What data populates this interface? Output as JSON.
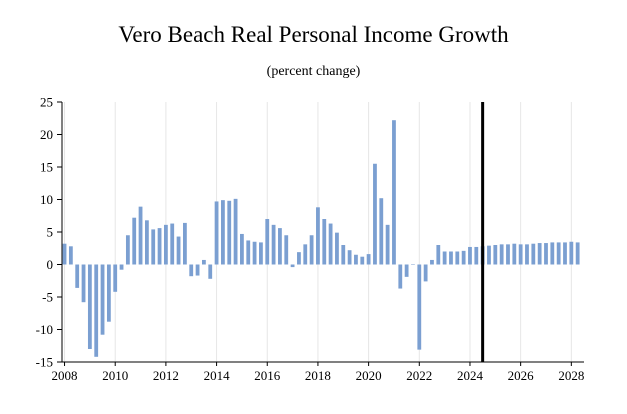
{
  "chart_data": {
    "type": "bar",
    "title": "Vero Beach Real Personal Income Growth",
    "subtitle": "(percent change)",
    "xlabel": "",
    "ylabel": "",
    "ylim": [
      -15,
      25
    ],
    "yticks": [
      -15,
      -10,
      -5,
      0,
      5,
      10,
      15,
      20,
      25
    ],
    "xlim": [
      2007.9,
      2028.5
    ],
    "xticks": [
      2008,
      2010,
      2012,
      2014,
      2016,
      2018,
      2020,
      2022,
      2024,
      2026,
      2028
    ],
    "grid": "vertical-light",
    "bar_color": "#7b9fd1",
    "reference_line": {
      "x": 2024.5,
      "color": "#000000"
    },
    "x": [
      2008,
      2008.25,
      2008.5,
      2008.75,
      2009,
      2009.25,
      2009.5,
      2009.75,
      2010,
      2010.25,
      2010.5,
      2010.75,
      2011,
      2011.25,
      2011.5,
      2011.75,
      2012,
      2012.25,
      2012.5,
      2012.75,
      2013,
      2013.25,
      2013.5,
      2013.75,
      2014,
      2014.25,
      2014.5,
      2014.75,
      2015,
      2015.25,
      2015.5,
      2015.75,
      2016,
      2016.25,
      2016.5,
      2016.75,
      2017,
      2017.25,
      2017.5,
      2017.75,
      2018,
      2018.25,
      2018.5,
      2018.75,
      2019,
      2019.25,
      2019.5,
      2019.75,
      2020,
      2020.25,
      2020.5,
      2020.75,
      2021,
      2021.25,
      2021.5,
      2021.75,
      2022,
      2022.25,
      2022.5,
      2022.75,
      2023,
      2023.25,
      2023.5,
      2023.75,
      2024,
      2024.25,
      2024.5,
      2024.75,
      2025,
      2025.25,
      2025.5,
      2025.75,
      2026,
      2026.25,
      2026.5,
      2026.75,
      2027,
      2027.25,
      2027.5,
      2027.75,
      2028,
      2028.25
    ],
    "values": [
      3.2,
      2.8,
      -3.6,
      -5.8,
      -13.0,
      -14.2,
      -10.8,
      -8.8,
      -4.2,
      -0.8,
      4.5,
      7.2,
      8.9,
      6.8,
      5.4,
      5.6,
      6.1,
      6.3,
      4.3,
      6.4,
      -1.8,
      -1.7,
      0.7,
      -2.2,
      9.7,
      9.9,
      9.8,
      10.1,
      4.7,
      3.7,
      3.5,
      3.4,
      7.0,
      6.1,
      5.6,
      4.5,
      -0.4,
      1.9,
      3.1,
      4.5,
      8.8,
      7.0,
      6.3,
      4.9,
      3.0,
      2.2,
      1.5,
      1.2,
      1.6,
      15.5,
      10.2,
      6.1,
      22.2,
      -3.7,
      -1.9,
      0.0,
      -13.1,
      -2.6,
      0.7,
      3.0,
      2.0,
      2.0,
      2.0,
      2.1,
      2.7,
      2.7,
      2.8,
      2.9,
      3.0,
      3.1,
      3.1,
      3.2,
      3.1,
      3.1,
      3.2,
      3.3,
      3.3,
      3.4,
      3.4,
      3.4,
      3.5,
      3.4
    ]
  }
}
